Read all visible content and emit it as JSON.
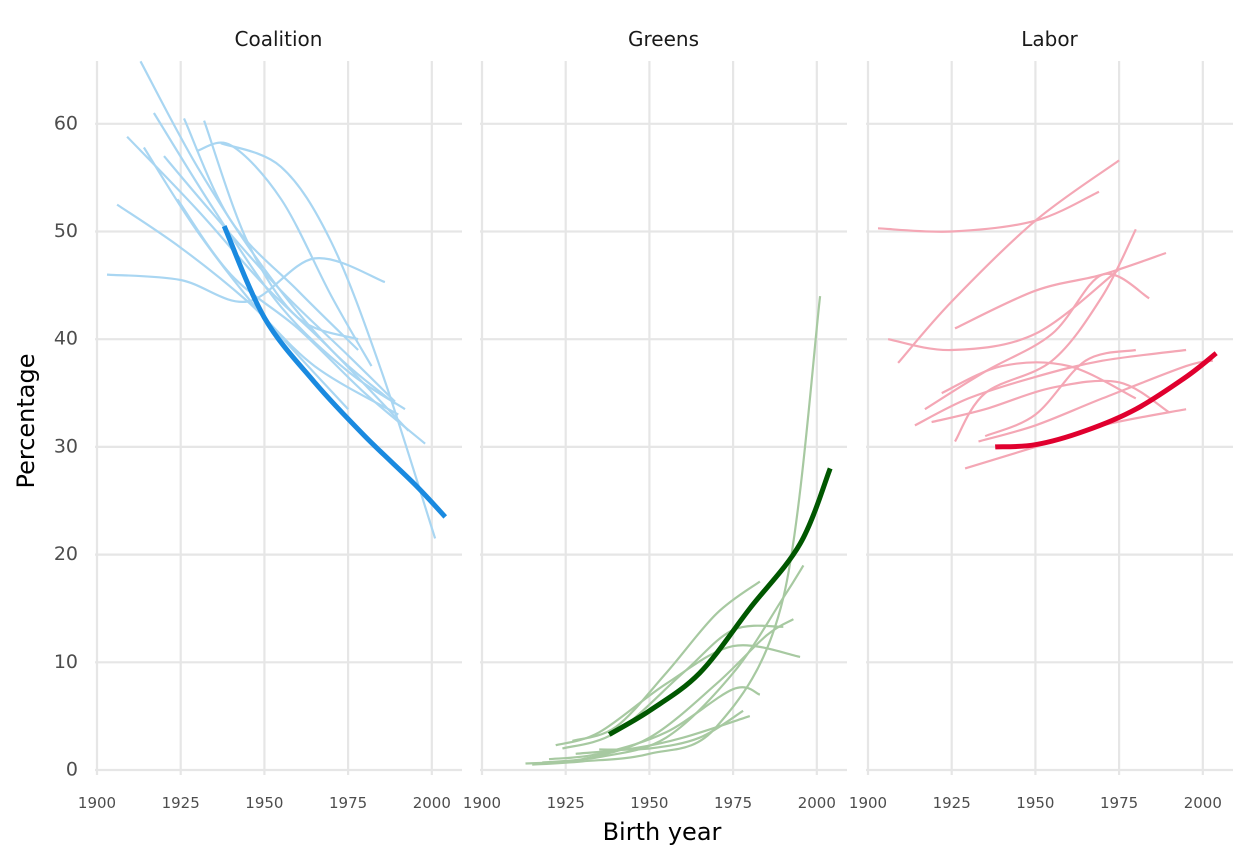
{
  "chart_data": {
    "type": "line",
    "xlabel": "Birth year",
    "ylabel": "Percentage",
    "xlim": [
      1900,
      2004
    ],
    "ylim": [
      0,
      65
    ],
    "xticks": [
      "1900",
      "1925",
      "1950",
      "1975",
      "2000"
    ],
    "yticks": [
      "0",
      "10",
      "20",
      "30",
      "40",
      "50",
      "60"
    ],
    "grid": true,
    "legend": "none",
    "panels": [
      {
        "title": "Coalition",
        "color": "#1a8ae0",
        "light_color": "#a9d6f2",
        "series": [
          {
            "x": [
              1903,
              1925,
              1945,
              1965,
              1986
            ],
            "y": [
              46,
              45.5,
              43.5,
              47.5,
              45.3
            ]
          },
          {
            "x": [
              1906,
              1925,
              1945,
              1965,
              1990
            ],
            "y": [
              52.5,
              48.5,
              43.5,
              37.5,
              33
            ]
          },
          {
            "x": [
              1909,
              1930,
              1950,
              1970,
              1993
            ],
            "y": [
              58.8,
              52,
              45,
              39,
              31.5
            ]
          },
          {
            "x": [
              1913,
              1930,
              1950,
              1970,
              1989
            ],
            "y": [
              65.8,
              56,
              46.5,
              39,
              34
            ]
          },
          {
            "x": [
              1914,
              1930,
              1950,
              1975
            ],
            "y": [
              57.8,
              50,
              42,
              33.5
            ]
          },
          {
            "x": [
              1917,
              1935,
              1955,
              1975,
              1992
            ],
            "y": [
              61,
              52,
              43,
              37,
              33.5
            ]
          },
          {
            "x": [
              1920,
              1935,
              1955,
              1975,
              1989
            ],
            "y": [
              57,
              51.5,
              44.5,
              38.5,
              34.2
            ]
          },
          {
            "x": [
              1924,
              1940,
              1960,
              1980,
              1998
            ],
            "y": [
              53,
              46,
              41,
              35,
              30.3
            ]
          },
          {
            "x": [
              1926,
              1940,
              1960,
              1978
            ],
            "y": [
              60.5,
              51,
              44.5,
              39
            ]
          },
          {
            "x": [
              1930,
              1940,
              1955,
              1970,
              1982
            ],
            "y": [
              57.5,
              58,
              53,
              44,
              37.5
            ]
          },
          {
            "x": [
              1932,
              1945,
              1960,
              1978
            ],
            "y": [
              60.3,
              49,
              42,
              40
            ]
          },
          {
            "x": [
              1937,
              1955,
              1970,
              1985,
              2001
            ],
            "y": [
              58.2,
              56,
              49,
              37,
              21.5
            ]
          }
        ],
        "highlight": {
          "x": [
            1938,
            1950,
            1965,
            1980,
            1995,
            2004
          ],
          "y": [
            50.5,
            42,
            36,
            31,
            26.5,
            23.5
          ]
        }
      },
      {
        "title": "Greens",
        "color": "#005700",
        "light_color": "#a7c9a1",
        "series": [
          {
            "x": [
              1913,
              1930,
              1950,
              1970,
              1985,
              1993
            ],
            "y": [
              0.6,
              1,
              3,
              8,
              12.5,
              14
            ]
          },
          {
            "x": [
              1915,
              1930,
              1950,
              1970,
              1990,
              2001
            ],
            "y": [
              0.5,
              0.8,
              1.5,
              4,
              16,
              44
            ]
          },
          {
            "x": [
              1918,
              1935,
              1955,
              1975,
              1990,
              1996
            ],
            "y": [
              0.7,
              1.2,
              3,
              9,
              16,
              19
            ]
          },
          {
            "x": [
              1920,
              1935,
              1955,
              1975,
              1983
            ],
            "y": [
              1,
              1.5,
              3.5,
              7.5,
              7
            ]
          },
          {
            "x": [
              1922,
              1935,
              1955,
              1975,
              1995
            ],
            "y": [
              2.3,
              3.5,
              8,
              11.5,
              10.5
            ]
          },
          {
            "x": [
              1924,
              1940,
              1960,
              1975,
              1990
            ],
            "y": [
              2,
              3.5,
              9,
              13,
              13.3
            ]
          },
          {
            "x": [
              1927,
              1940,
              1955,
              1970,
              1983
            ],
            "y": [
              2.7,
              4,
              9,
              14.5,
              17.5
            ]
          },
          {
            "x": [
              1928,
              1945,
              1960,
              1980
            ],
            "y": [
              1.5,
              2,
              3,
              5
            ]
          },
          {
            "x": [
              1935,
              1950,
              1965,
              1978
            ],
            "y": [
              1.9,
              2,
              3,
              5.5
            ]
          }
        ],
        "highlight": {
          "x": [
            1938,
            1950,
            1965,
            1980,
            1995,
            2004
          ],
          "y": [
            3.3,
            5.5,
            9,
            15,
            21,
            28
          ]
        }
      },
      {
        "title": "Labor",
        "color": "#e0002e",
        "light_color": "#f4a7b5",
        "series": [
          {
            "x": [
              1903,
              1925,
              1950,
              1969
            ],
            "y": [
              50.3,
              50,
              51,
              53.7
            ]
          },
          {
            "x": [
              1906,
              1925,
              1950,
              1975
            ],
            "y": [
              40,
              39,
              40.5,
              46.5
            ]
          },
          {
            "x": [
              1909,
              1925,
              1950,
              1975
            ],
            "y": [
              37.8,
              43.5,
              51,
              56.6
            ]
          },
          {
            "x": [
              1914,
              1930,
              1950,
              1970,
              1995
            ],
            "y": [
              32,
              34.5,
              36.5,
              38,
              39
            ]
          },
          {
            "x": [
              1917,
              1935,
              1955,
              1970,
              1984
            ],
            "y": [
              33.5,
              37,
              40.5,
              46,
              43.8
            ]
          },
          {
            "x": [
              1919,
              1935,
              1955,
              1975,
              1990
            ],
            "y": [
              32.3,
              33.5,
              35.5,
              36,
              33.2
            ]
          },
          {
            "x": [
              1922,
              1940,
              1960,
              1980
            ],
            "y": [
              35,
              37.5,
              37.5,
              34.5
            ]
          },
          {
            "x": [
              1926,
              1950,
              1970,
              1989
            ],
            "y": [
              41,
              44.5,
              46,
              48
            ]
          },
          {
            "x": [
              1926,
              1935,
              1955,
              1970,
              1980
            ],
            "y": [
              30.5,
              35,
              38,
              44,
              50.2
            ]
          },
          {
            "x": [
              1929,
              1950,
              1970,
              1995
            ],
            "y": [
              28,
              30,
              32,
              33.5
            ]
          },
          {
            "x": [
              1933,
              1950,
              1970,
              1995,
              2003
            ],
            "y": [
              30.5,
              32,
              34.5,
              37.5,
              38
            ]
          },
          {
            "x": [
              1935,
              1950,
              1965,
              1980
            ],
            "y": [
              31,
              33,
              38,
              39
            ]
          }
        ],
        "highlight": {
          "x": [
            1938,
            1950,
            1965,
            1980,
            1995,
            2004
          ],
          "y": [
            30,
            30.2,
            31.5,
            33.5,
            36.5,
            38.7
          ]
        }
      }
    ]
  }
}
